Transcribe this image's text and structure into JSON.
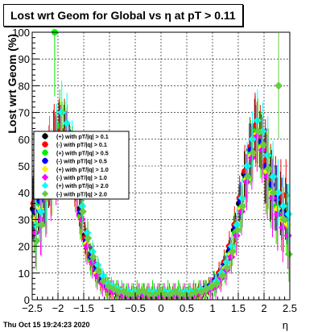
{
  "chart_data": {
    "type": "scatter",
    "title": "Lost wrt Geom for Global vs  η at pT > 0.11",
    "xlabel": "η",
    "ylabel": "Lost wrt Geom (%)",
    "xlim": [
      -2.5,
      2.5
    ],
    "ylim": [
      0,
      100
    ],
    "grid": true,
    "legend_position": "upper-left",
    "x_ticks": [
      "−2.5",
      "−2",
      "−1.5",
      "−1",
      "−0.5",
      "0",
      "0.5",
      "1",
      "1.5",
      "2",
      "2.5"
    ],
    "y_ticks": [
      "0",
      "10",
      "20",
      "30",
      "40",
      "50",
      "60",
      "70",
      "80",
      "90",
      "100"
    ],
    "x": [
      -2.45,
      -2.35,
      -2.25,
      -2.15,
      -2.05,
      -1.95,
      -1.85,
      -1.75,
      -1.65,
      -1.55,
      -1.45,
      -1.35,
      -1.25,
      -1.15,
      -1.05,
      -0.95,
      -0.85,
      -0.75,
      -0.65,
      -0.55,
      -0.45,
      -0.35,
      -0.25,
      -0.15,
      -0.05,
      0.05,
      0.15,
      0.25,
      0.35,
      0.45,
      0.55,
      0.65,
      0.75,
      0.85,
      0.95,
      1.05,
      1.15,
      1.25,
      1.35,
      1.45,
      1.55,
      1.65,
      1.75,
      1.85,
      1.95,
      2.05,
      2.15,
      2.25,
      2.35,
      2.45
    ],
    "series": [
      {
        "name": "(+) with pT/|q| > 0.1",
        "color": "#000000",
        "values": [
          34,
          38,
          42,
          48,
          56,
          63,
          62,
          56,
          46,
          34,
          24,
          17,
          12,
          8,
          5,
          4,
          3,
          3,
          2,
          2,
          2,
          2,
          2,
          2,
          2,
          2,
          2,
          2,
          2,
          2,
          2,
          2,
          3,
          3,
          4,
          6,
          9,
          13,
          18,
          26,
          36,
          47,
          56,
          64,
          60,
          50,
          42,
          38,
          36,
          34
        ]
      },
      {
        "name": "(-) with pT/|q| > 0.1",
        "color": "#ff0000",
        "values": [
          36,
          38,
          41,
          50,
          57,
          63,
          63,
          55,
          44,
          32,
          23,
          16,
          11,
          7,
          5,
          4,
          3,
          2,
          2,
          2,
          2,
          2,
          2,
          2,
          2,
          2,
          2,
          2,
          2,
          2,
          2,
          3,
          3,
          4,
          5,
          7,
          10,
          14,
          20,
          28,
          38,
          48,
          57,
          65,
          61,
          52,
          44,
          40,
          39,
          39
        ]
      },
      {
        "name": "(+) with pT/|q| > 0.5",
        "color": "#00ee00",
        "values": [
          31,
          36,
          44,
          52,
          100,
          65,
          61,
          53,
          43,
          31,
          21,
          15,
          10,
          7,
          5,
          4,
          3,
          3,
          2,
          2,
          3,
          2,
          2,
          3,
          2,
          2,
          3,
          2,
          3,
          2,
          2,
          3,
          3,
          3,
          4,
          6,
          9,
          12,
          17,
          25,
          34,
          45,
          55,
          63,
          58,
          48,
          42,
          35,
          32,
          30
        ]
      },
      {
        "name": "(-) with pT/|q| > 0.5",
        "color": "#0000ff",
        "values": [
          33,
          37,
          40,
          49,
          55,
          62,
          60,
          54,
          45,
          33,
          22,
          16,
          11,
          7,
          5,
          4,
          3,
          2,
          2,
          2,
          2,
          2,
          2,
          2,
          2,
          2,
          2,
          2,
          2,
          2,
          2,
          2,
          3,
          4,
          5,
          7,
          9,
          13,
          19,
          27,
          37,
          46,
          56,
          62,
          59,
          50,
          43,
          38,
          34,
          32
        ]
      },
      {
        "name": "(+) with pT/|q| > 1.0",
        "color": "#ffee00",
        "values": [
          30,
          34,
          40,
          47,
          54,
          62,
          60,
          52,
          42,
          30,
          21,
          14,
          10,
          6,
          4,
          3,
          3,
          2,
          2,
          2,
          2,
          2,
          2,
          2,
          2,
          2,
          2,
          2,
          2,
          2,
          2,
          2,
          3,
          3,
          4,
          6,
          8,
          12,
          17,
          24,
          34,
          45,
          54,
          62,
          57,
          48,
          40,
          34,
          30,
          28
        ]
      },
      {
        "name": "(-) with pT/|q| > 1.0",
        "color": "#ff00ff",
        "values": [
          25,
          30,
          38,
          45,
          52,
          60,
          58,
          51,
          41,
          30,
          20,
          14,
          9,
          6,
          4,
          3,
          3,
          2,
          2,
          2,
          2,
          2,
          2,
          2,
          2,
          2,
          2,
          2,
          2,
          2,
          2,
          2,
          3,
          3,
          4,
          5,
          8,
          11,
          16,
          24,
          33,
          44,
          53,
          61,
          56,
          46,
          38,
          32,
          27,
          24
        ]
      },
      {
        "name": "(+) with pT/|q| > 2.0",
        "color": "#00ffff",
        "values": [
          28,
          33,
          42,
          50,
          58,
          70,
          66,
          57,
          47,
          35,
          25,
          18,
          13,
          9,
          6,
          5,
          4,
          3,
          3,
          3,
          3,
          3,
          3,
          3,
          3,
          3,
          3,
          3,
          3,
          3,
          3,
          3,
          4,
          4,
          5,
          7,
          10,
          14,
          20,
          28,
          38,
          50,
          60,
          67,
          63,
          54,
          46,
          40,
          35,
          32
        ]
      },
      {
        "name": "(-) with pT/|q| > 2.0",
        "color": "#66cc44",
        "values": [
          22,
          28,
          38,
          46,
          55,
          62,
          61,
          54,
          44,
          33,
          23,
          16,
          11,
          7,
          5,
          4,
          3,
          3,
          2,
          2,
          3,
          3,
          2,
          2,
          3,
          2,
          2,
          3,
          2,
          2,
          2,
          3,
          3,
          4,
          5,
          6,
          9,
          12,
          18,
          26,
          35,
          46,
          55,
          63,
          58,
          49,
          40,
          80,
          30,
          17
        ]
      }
    ]
  },
  "footer": {
    "date": "Thu Oct 15 19:24:23 2020"
  }
}
